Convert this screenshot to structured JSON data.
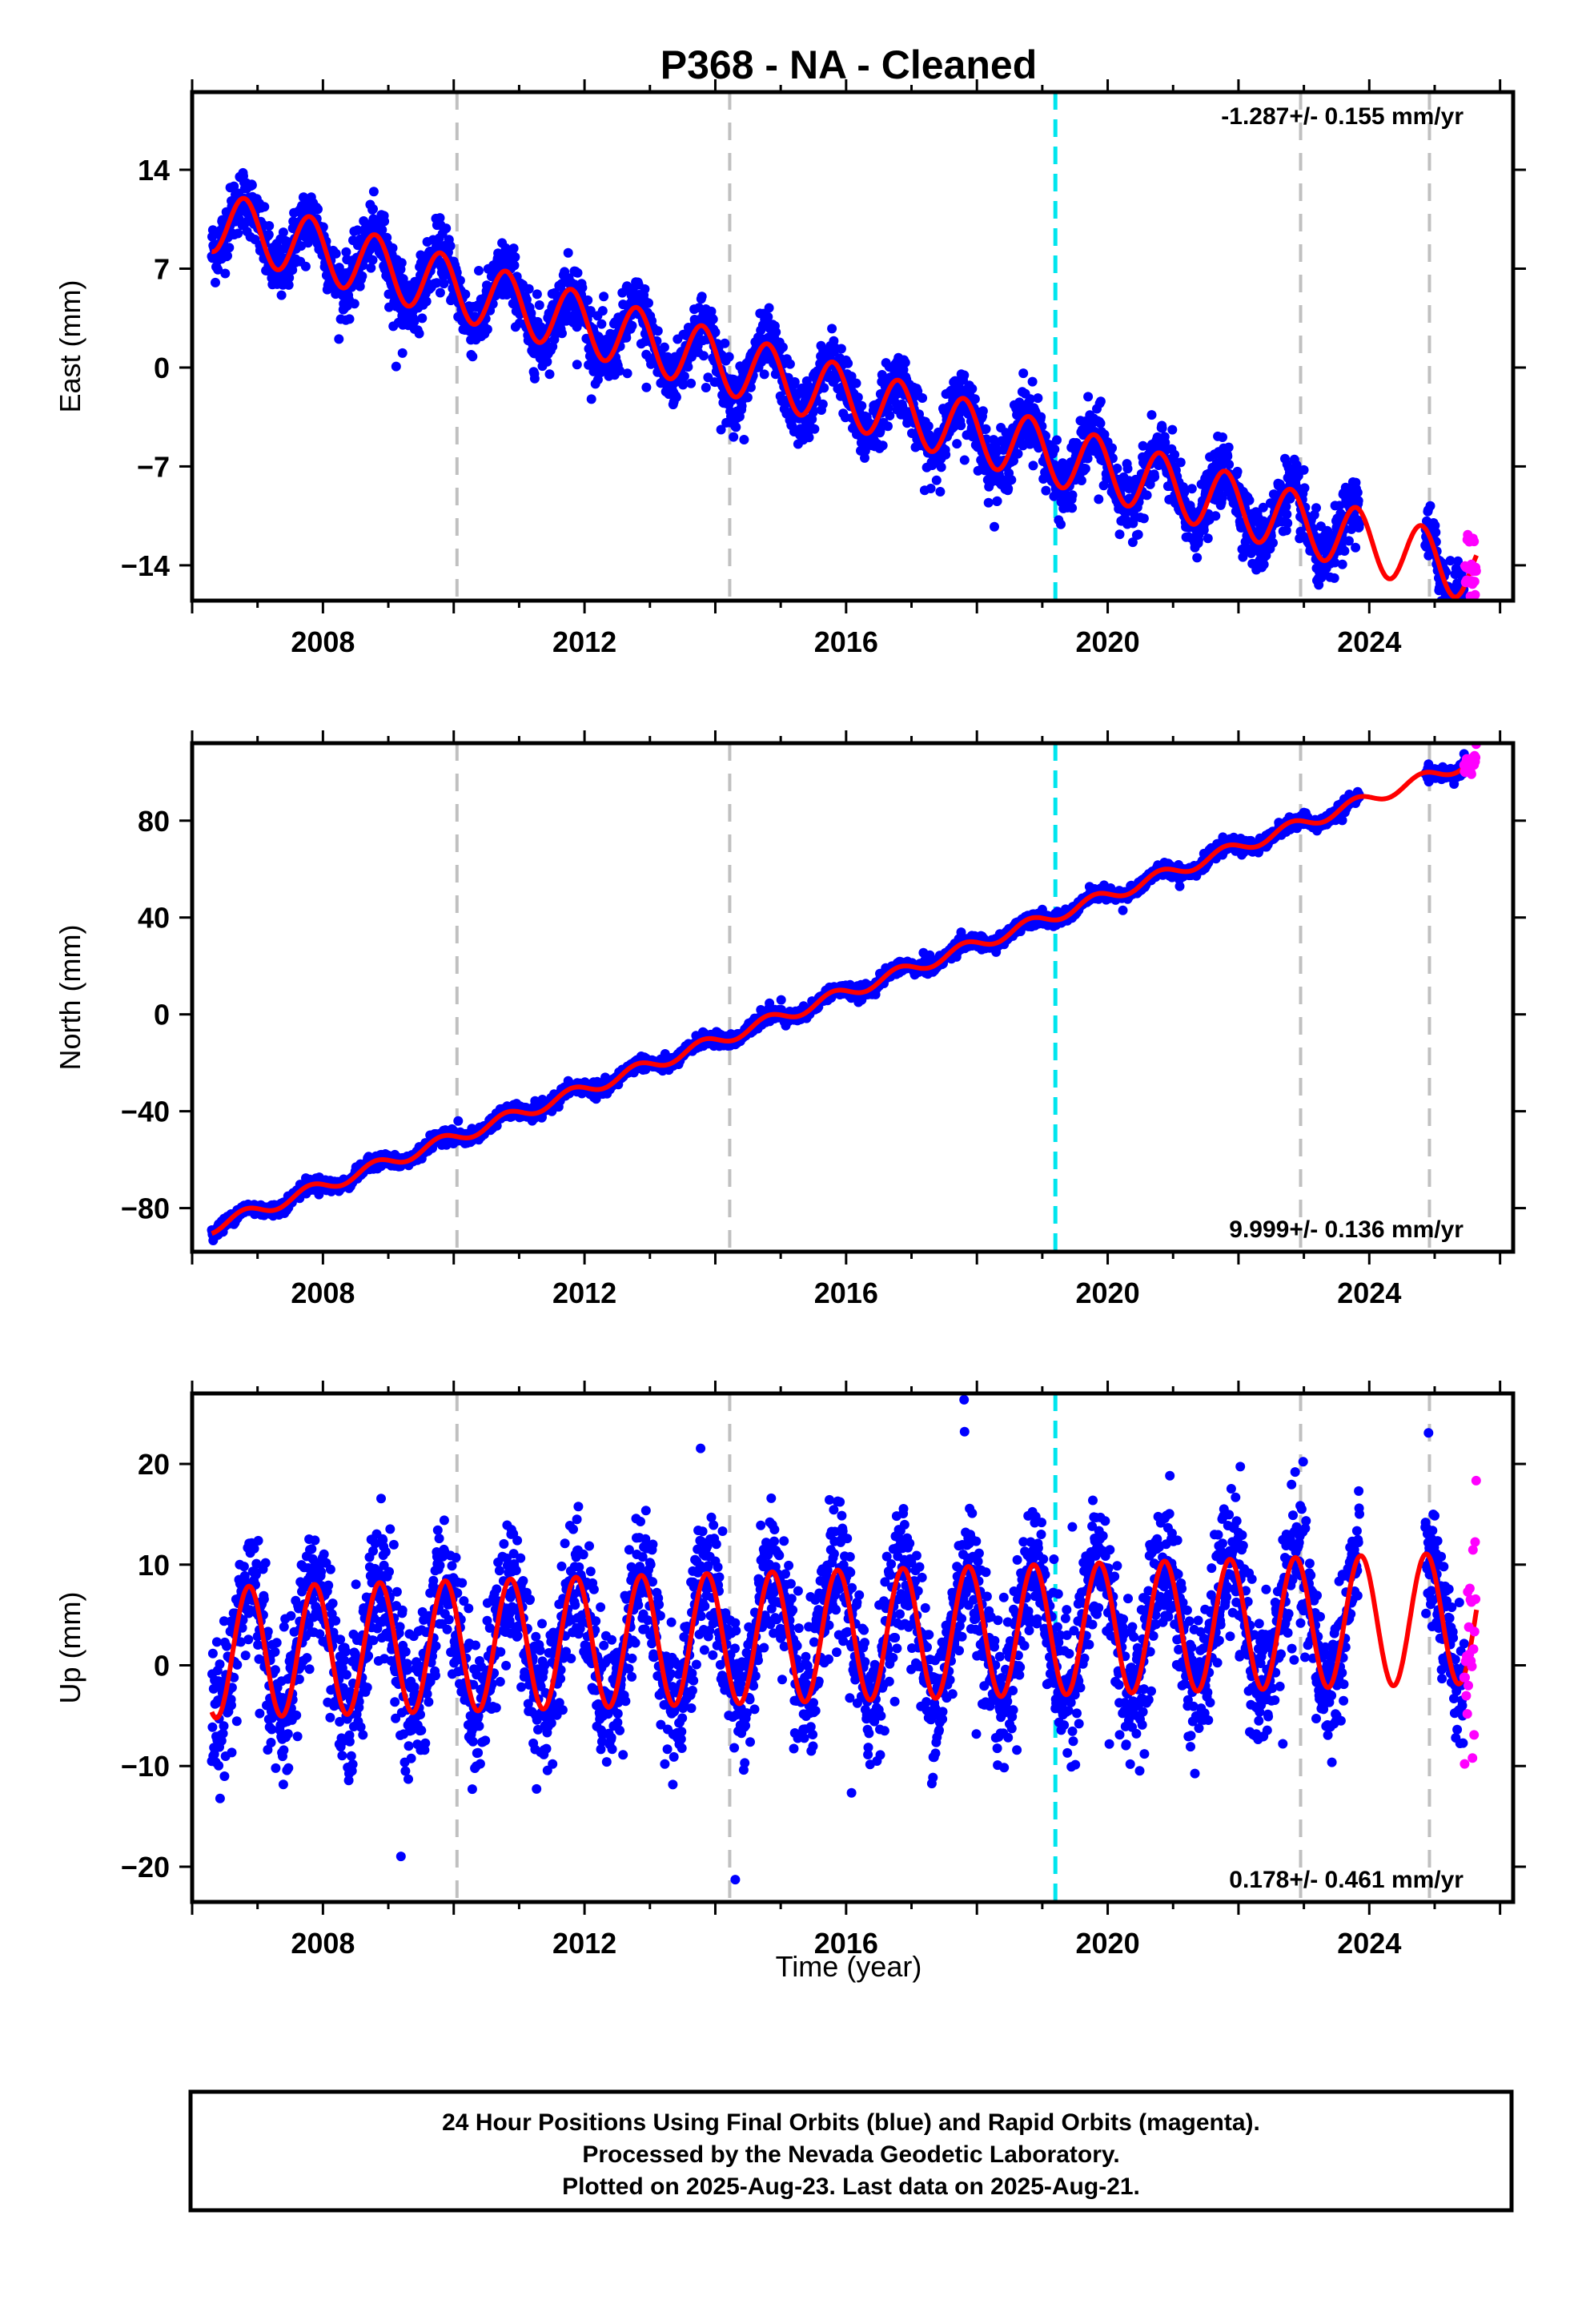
{
  "title": "P368  - NA - Cleaned",
  "colors": {
    "final_orbits": "#0000ff",
    "rapid_orbits": "#ff00ff",
    "model": "#ff0000",
    "equipment_change": "#c0c0c0",
    "earthquake": "#00e5ee"
  },
  "chart_data": [
    {
      "type": "scatter",
      "ylabel": "East (mm)",
      "xlim": [
        2006.0,
        2026.2
      ],
      "ylim": [
        -16.5,
        19.5
      ],
      "yticks": [
        -14,
        -7,
        0,
        7,
        14
      ],
      "xticks": [
        2008,
        2012,
        2016,
        2020,
        2024
      ],
      "rate_label": "-1.287+/- 0.155 mm/yr",
      "rate_position": "top-right",
      "model": {
        "intercept_2006": 10.8,
        "rate": -1.287,
        "annual_amp": 2.2,
        "annual_phase": 0.55,
        "noise": 1.1
      },
      "data_span": [
        2006.3,
        2025.64
      ],
      "gaps": [
        [
          2023.85,
          2024.85
        ]
      ],
      "rapid_span": [
        2025.45,
        2025.64
      ]
    },
    {
      "type": "scatter",
      "ylabel": "North (mm)",
      "xlim": [
        2006.0,
        2026.2
      ],
      "ylim": [
        -98,
        112
      ],
      "yticks": [
        -80,
        -40,
        0,
        40,
        80
      ],
      "xticks": [
        2008,
        2012,
        2016,
        2020,
        2024
      ],
      "rate_label": "9.999+/- 0.136 mm/yr",
      "rate_position": "bottom-right",
      "model": {
        "intercept_2006": -91.0,
        "rate": 9.999,
        "annual_amp": 2.5,
        "annual_phase": 0.55,
        "noise": 1.3
      },
      "data_span": [
        2006.3,
        2025.64
      ],
      "gaps": [
        [
          2023.85,
          2024.85
        ]
      ],
      "rapid_span": [
        2025.45,
        2025.64
      ]
    },
    {
      "type": "scatter",
      "ylabel": "Up (mm)",
      "xlim": [
        2006.0,
        2026.2
      ],
      "ylim": [
        -23.5,
        27
      ],
      "yticks": [
        -20,
        -10,
        0,
        10,
        20
      ],
      "xticks": [
        2008,
        2012,
        2016,
        2020,
        2024
      ],
      "rate_label": "0.178+/- 0.461 mm/yr",
      "rate_position": "bottom-right",
      "model": {
        "intercept_2006": 1.2,
        "rate": 0.178,
        "annual_amp": 6.5,
        "annual_phase": 0.62,
        "noise": 3.4
      },
      "data_span": [
        2006.3,
        2025.64
      ],
      "gaps": [
        [
          2023.85,
          2024.85
        ]
      ],
      "rapid_span": [
        2025.45,
        2025.64
      ]
    }
  ],
  "vertical_lines": {
    "equipment": [
      2010.05,
      2014.22,
      2022.95,
      2024.92
    ],
    "earthquake": [
      2019.2
    ]
  },
  "xlabel": "Time (year)",
  "footer": {
    "line1": "24 Hour Positions Using Final Orbits (blue) and Rapid Orbits (magenta).",
    "line2": "Processed by the Nevada Geodetic Laboratory.",
    "line3": "Plotted on 2025-Aug-23. Last data on 2025-Aug-21."
  }
}
